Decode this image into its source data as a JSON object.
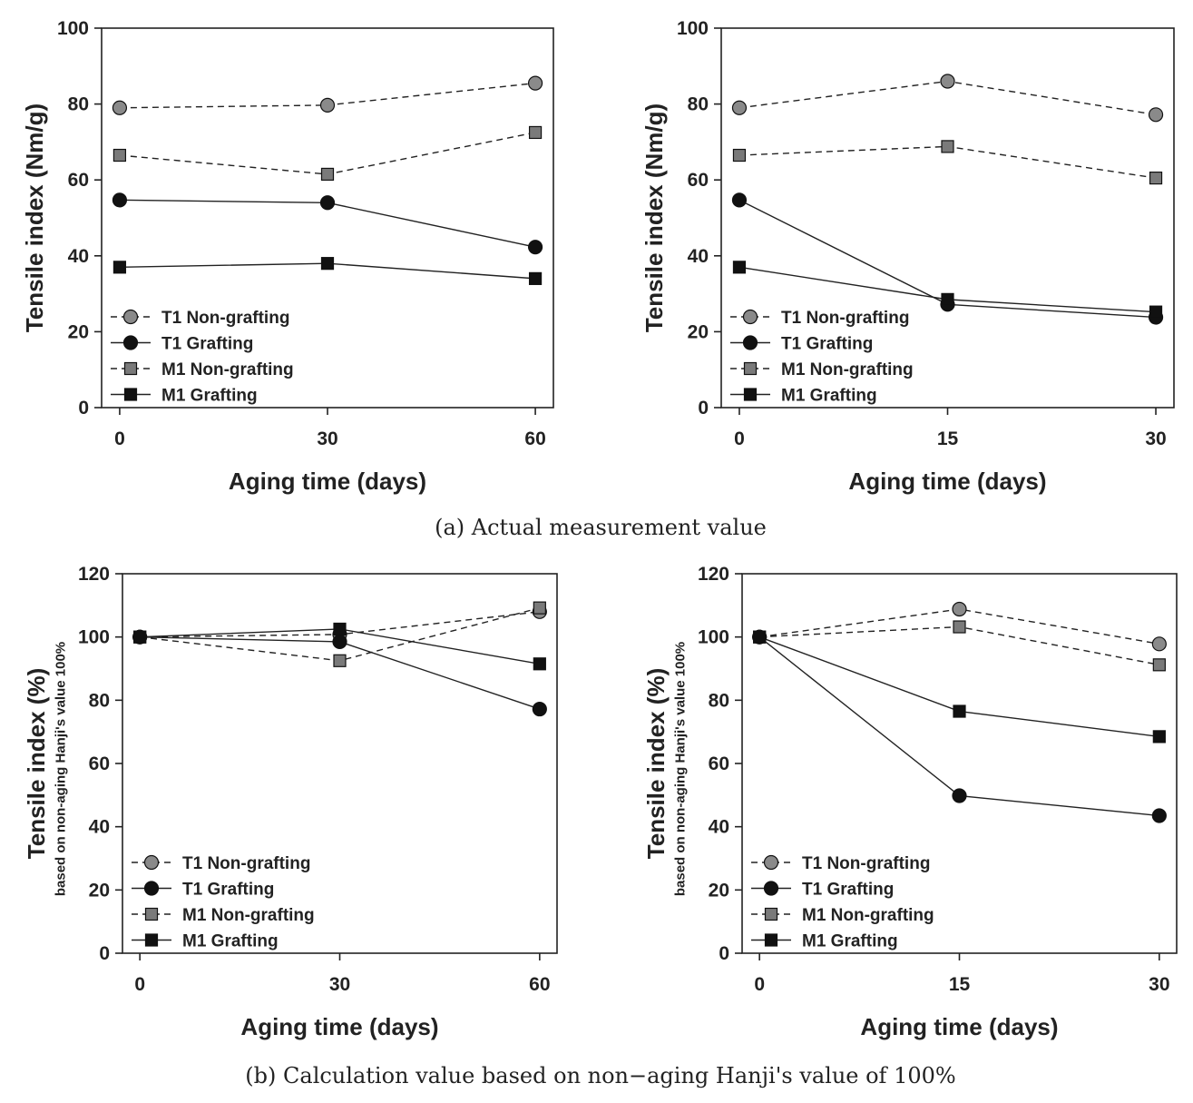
{
  "captions": {
    "a": "(a) Actual measurement value",
    "b": "(b) Calculation value based on non−aging Hanji's value of 100%"
  },
  "colors": {
    "axis": "#222222",
    "grafting": "#111111",
    "t1_non_grafting": "#8a8a8a",
    "m1_non_grafting": "#7a7a7a"
  },
  "chart_data": [
    {
      "id": "a-left",
      "type": "line",
      "xlabel": "Aging time (days)",
      "ylabel": "Tensile index (Nm/g)",
      "ylabel_sub": "",
      "x": [
        0,
        30,
        60
      ],
      "xticks": [
        "0",
        "30",
        "60"
      ],
      "yticks": [
        0,
        20,
        40,
        60,
        80,
        100
      ],
      "ylim": [
        0,
        100
      ],
      "legend_position": "bottom-left",
      "series": [
        {
          "name": "T1 Non-grafting",
          "marker": "circle",
          "style": "dashed",
          "values": [
            79,
            79.7,
            85.5
          ]
        },
        {
          "name": "T1 Grafting",
          "marker": "circle",
          "style": "solid",
          "values": [
            54.7,
            54,
            42.3
          ]
        },
        {
          "name": "M1 Non-grafting",
          "marker": "square",
          "style": "dashed",
          "values": [
            66.5,
            61.5,
            72.5
          ]
        },
        {
          "name": "M1 Grafting",
          "marker": "square",
          "style": "solid",
          "values": [
            37,
            38,
            34
          ]
        }
      ]
    },
    {
      "id": "a-right",
      "type": "line",
      "xlabel": "Aging time (days)",
      "ylabel": "Tensile index (Nm/g)",
      "ylabel_sub": "",
      "x": [
        0,
        15,
        30
      ],
      "xticks": [
        "0",
        "15",
        "30"
      ],
      "yticks": [
        0,
        20,
        40,
        60,
        80,
        100
      ],
      "ylim": [
        0,
        100
      ],
      "legend_position": "bottom-left",
      "series": [
        {
          "name": "T1 Non-grafting",
          "marker": "circle",
          "style": "dashed",
          "values": [
            79,
            86,
            77.2
          ]
        },
        {
          "name": "T1 Grafting",
          "marker": "circle",
          "style": "solid",
          "values": [
            54.7,
            27.2,
            23.8
          ]
        },
        {
          "name": "M1 Non-grafting",
          "marker": "square",
          "style": "dashed",
          "values": [
            66.5,
            68.8,
            60.5
          ]
        },
        {
          "name": "M1 Grafting",
          "marker": "square",
          "style": "solid",
          "values": [
            37,
            28.5,
            25.2
          ]
        }
      ]
    },
    {
      "id": "b-left",
      "type": "line",
      "xlabel": "Aging time (days)",
      "ylabel": "Tensile index (%)",
      "ylabel_sub": "based on non-aging Hanji's value 100%",
      "x": [
        0,
        30,
        60
      ],
      "xticks": [
        "0",
        "30",
        "60"
      ],
      "yticks": [
        0,
        20,
        40,
        60,
        80,
        100,
        120
      ],
      "ylim": [
        0,
        120
      ],
      "legend_position": "bottom-left",
      "series": [
        {
          "name": "T1 Non-grafting",
          "marker": "circle",
          "style": "dashed",
          "values": [
            100,
            100.8,
            108
          ]
        },
        {
          "name": "T1 Grafting",
          "marker": "circle",
          "style": "solid",
          "values": [
            100,
            98.5,
            77.2
          ]
        },
        {
          "name": "M1 Non-grafting",
          "marker": "square",
          "style": "dashed",
          "values": [
            100,
            92.5,
            109.2
          ]
        },
        {
          "name": "M1 Grafting",
          "marker": "square",
          "style": "solid",
          "values": [
            100,
            102.5,
            91.5
          ]
        }
      ]
    },
    {
      "id": "b-right",
      "type": "line",
      "xlabel": "Aging time (days)",
      "ylabel": "Tensile index (%)",
      "ylabel_sub": "based on non-aging Hanji's value 100%",
      "x": [
        0,
        15,
        30
      ],
      "xticks": [
        "0",
        "15",
        "30"
      ],
      "yticks": [
        0,
        20,
        40,
        60,
        80,
        100,
        120
      ],
      "ylim": [
        0,
        120
      ],
      "legend_position": "bottom-left",
      "series": [
        {
          "name": "T1 Non-grafting",
          "marker": "circle",
          "style": "dashed",
          "values": [
            100,
            108.8,
            97.8
          ]
        },
        {
          "name": "T1 Grafting",
          "marker": "circle",
          "style": "solid",
          "values": [
            100,
            49.8,
            43.5
          ]
        },
        {
          "name": "M1 Non-grafting",
          "marker": "square",
          "style": "dashed",
          "values": [
            100,
            103.2,
            91.2
          ]
        },
        {
          "name": "M1 Grafting",
          "marker": "square",
          "style": "solid",
          "values": [
            100,
            76.5,
            68.5
          ]
        }
      ]
    }
  ]
}
